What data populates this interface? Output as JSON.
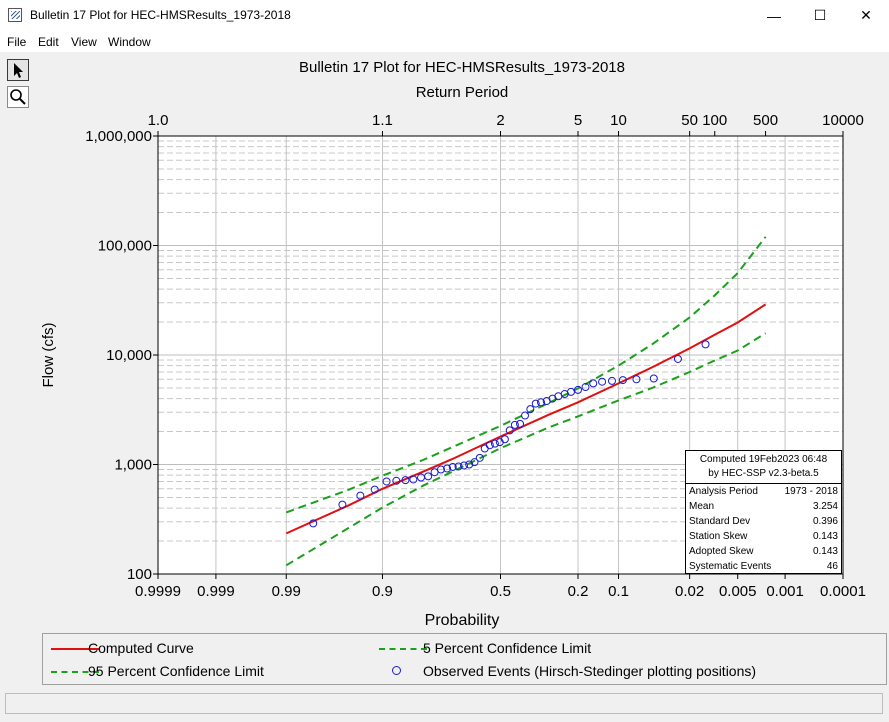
{
  "window": {
    "title": "Bulletin 17 Plot for HEC-HMSResults_1973-2018",
    "controls": {
      "minimize": "—",
      "maximize": "☐",
      "close": "✕"
    }
  },
  "menu": [
    "File",
    "Edit",
    "View",
    "Window"
  ],
  "tools": [
    "pointer-tool",
    "zoom-tool"
  ],
  "chart_data": {
    "type": "scatter",
    "title": "Bulletin 17 Plot for HEC-HMSResults_1973-2018",
    "top_axis_label": "Return Period",
    "xlabel": "Probability",
    "ylabel": "Flow (cfs)",
    "x_scale": "normal probability (exceedance, decreasing left to right)",
    "y_scale": "log",
    "ylim": [
      100,
      1000000
    ],
    "xlim": [
      0.9999,
      0.0001
    ],
    "grid": true,
    "x_ticks": [
      {
        "p": 0.9999,
        "label": "0.9999"
      },
      {
        "p": 0.999,
        "label": "0.999"
      },
      {
        "p": 0.99,
        "label": "0.99"
      },
      {
        "p": 0.9,
        "label": "0.9"
      },
      {
        "p": 0.5,
        "label": "0.5"
      },
      {
        "p": 0.2,
        "label": "0.2"
      },
      {
        "p": 0.1,
        "label": "0.1"
      },
      {
        "p": 0.02,
        "label": "0.02"
      },
      {
        "p": 0.005,
        "label": "0.005"
      },
      {
        "p": 0.001,
        "label": "0.001"
      },
      {
        "p": 0.0001,
        "label": "0.0001"
      }
    ],
    "top_ticks": [
      {
        "p": 0.9999,
        "label": "1.0"
      },
      {
        "p": 0.9,
        "label": "1.1"
      },
      {
        "p": 0.5,
        "label": "2"
      },
      {
        "p": 0.2,
        "label": "5"
      },
      {
        "p": 0.1,
        "label": "10"
      },
      {
        "p": 0.02,
        "label": "50"
      },
      {
        "p": 0.01,
        "label": "100"
      },
      {
        "p": 0.002,
        "label": "500"
      },
      {
        "p": 0.0001,
        "label": "10000"
      }
    ],
    "y_ticks": [
      {
        "v": 100,
        "label": "100"
      },
      {
        "v": 1000,
        "label": "1,000"
      },
      {
        "v": 10000,
        "label": "10,000"
      },
      {
        "v": 100000,
        "label": "100,000"
      },
      {
        "v": 1000000,
        "label": "1,000,000"
      }
    ],
    "series": [
      {
        "name": "Computed Curve",
        "color": "#e01010",
        "style": "solid",
        "p": [
          0.99,
          0.95,
          0.9,
          0.8,
          0.7,
          0.5,
          0.3,
          0.2,
          0.1,
          0.05,
          0.02,
          0.01,
          0.005,
          0.002
        ],
        "values": [
          235,
          425,
          600,
          860,
          1120,
          1800,
          2850,
          3700,
          5500,
          7700,
          11500,
          15300,
          19800,
          29000
        ]
      },
      {
        "name": "5 Percent Confidence Limit",
        "color": "#1aa01a",
        "style": "dashed",
        "p": [
          0.99,
          0.95,
          0.9,
          0.8,
          0.7,
          0.5,
          0.3,
          0.2,
          0.1,
          0.05,
          0.02,
          0.01,
          0.005,
          0.002
        ],
        "values": [
          365,
          590,
          790,
          1100,
          1440,
          2250,
          3650,
          4950,
          8000,
          12500,
          22000,
          35000,
          56000,
          120000
        ]
      },
      {
        "name": "95 Percent Confidence Limit",
        "color": "#1aa01a",
        "style": "dashed",
        "p": [
          0.99,
          0.95,
          0.9,
          0.8,
          0.7,
          0.5,
          0.3,
          0.2,
          0.1,
          0.05,
          0.02,
          0.01,
          0.005,
          0.002
        ],
        "values": [
          120,
          265,
          405,
          640,
          860,
          1410,
          2180,
          2750,
          3850,
          5000,
          7000,
          8900,
          11000,
          15800
        ]
      },
      {
        "name": "Observed Events (Hirsch-Stedinger plotting positions)",
        "color": "#1a1ad6",
        "style": "marker",
        "p": [
          0.979,
          0.957,
          0.936,
          0.914,
          0.892,
          0.871,
          0.849,
          0.828,
          0.806,
          0.784,
          0.763,
          0.741,
          0.719,
          0.698,
          0.676,
          0.654,
          0.633,
          0.611,
          0.589,
          0.568,
          0.546,
          0.524,
          0.503,
          0.481,
          0.46,
          0.438,
          0.416,
          0.395,
          0.373,
          0.351,
          0.33,
          0.308,
          0.286,
          0.265,
          0.243,
          0.222,
          0.2,
          0.178,
          0.157,
          0.135,
          0.113,
          0.092,
          0.07,
          0.048,
          0.027,
          0.013
        ],
        "values": [
          290,
          430,
          520,
          590,
          700,
          710,
          720,
          730,
          760,
          780,
          850,
          900,
          920,
          950,
          960,
          980,
          1000,
          1050,
          1150,
          1400,
          1500,
          1550,
          1600,
          1700,
          2050,
          2300,
          2350,
          2800,
          3200,
          3600,
          3700,
          3800,
          4000,
          4200,
          4400,
          4600,
          4800,
          5100,
          5500,
          5700,
          5800,
          5900,
          6000,
          6100,
          9200,
          12500
        ]
      }
    ],
    "legend": {
      "placement": "bottom",
      "entries": [
        {
          "label": "Computed Curve",
          "color": "#e01010",
          "style": "solid"
        },
        {
          "label": "5 Percent Confidence Limit",
          "color": "#1aa01a",
          "style": "dashed"
        },
        {
          "label": "95 Percent Confidence Limit",
          "color": "#1aa01a",
          "style": "dashed"
        },
        {
          "label": "Observed Events (Hirsch-Stedinger plotting positions)",
          "color": "#1a1ad6",
          "style": "marker"
        }
      ]
    },
    "stats_box": {
      "header_line1": "Computed 19Feb2023 06:48",
      "header_line2": "by HEC-SSP v2.3-beta.5",
      "rows": [
        {
          "label": "Analysis Period",
          "value": "1973 - 2018"
        },
        {
          "label": "Mean",
          "value": "3.254"
        },
        {
          "label": "Standard Dev",
          "value": "0.396"
        },
        {
          "label": "Station Skew",
          "value": "0.143"
        },
        {
          "label": "Adopted Skew",
          "value": "0.143"
        },
        {
          "label": "Systematic Events",
          "value": "46"
        }
      ]
    }
  }
}
